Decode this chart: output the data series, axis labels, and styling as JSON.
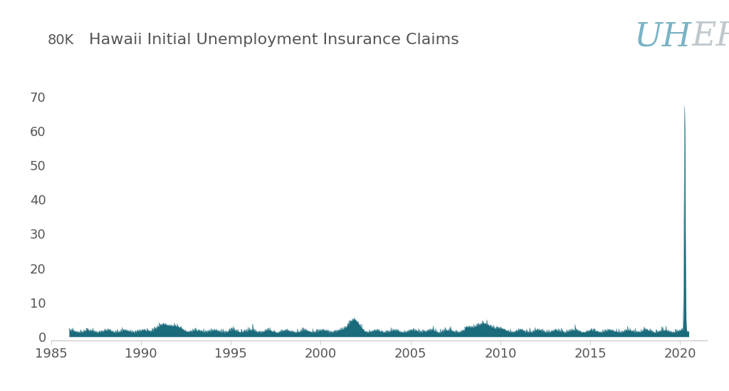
{
  "title": "Hawaii Initial Unemployment Insurance Claims",
  "title_fontsize": 16,
  "line_color": "#1a6b7c",
  "background_color": "#ffffff",
  "axis_color": "#cccccc",
  "text_color": "#555555",
  "uhero_color_UH": "#7ab3c5",
  "uhero_color_ERO": "#c0c8cc",
  "ylim": [
    -1,
    80
  ],
  "yticks": [
    0,
    10,
    20,
    30,
    40,
    50,
    60,
    70
  ],
  "xticks": [
    1985,
    1990,
    1995,
    2000,
    2005,
    2010,
    2015,
    2020
  ],
  "xlim": [
    1985,
    2021.5
  ]
}
